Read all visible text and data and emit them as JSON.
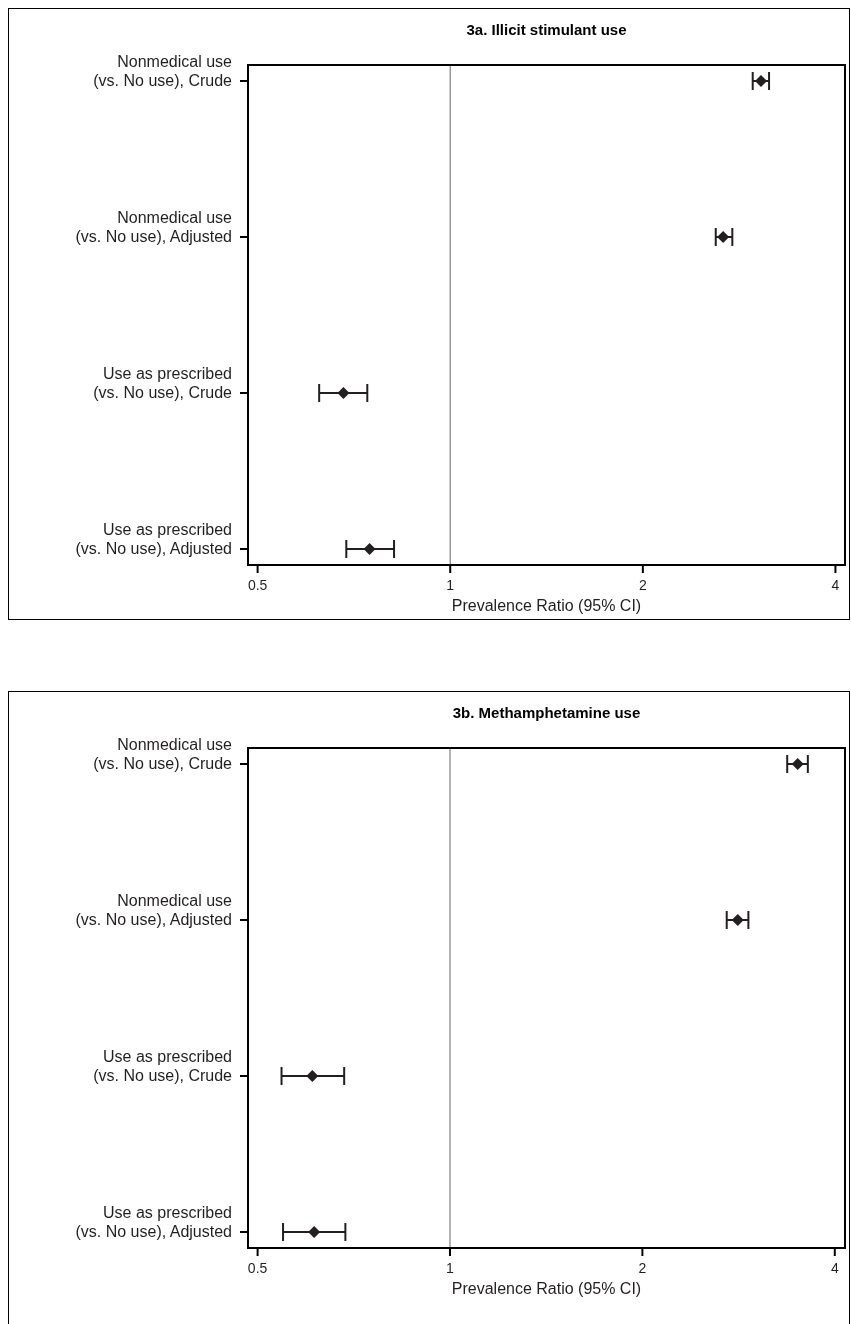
{
  "chart_data": [
    {
      "type": "scatter",
      "title": "3a. Illicit stimulant use",
      "xlabel": "Prevalence Ratio (95% CI)",
      "orientation": "horizontal",
      "log": "x",
      "marker": "diamond",
      "grid": false,
      "categories": [
        "Nonmedical use\n(vs. No use), Crude",
        "Nonmedical use\n(vs. No use), Adjusted",
        "Use as prescribed\n(vs. No use), Crude",
        "Use as prescribed\n(vs. No use), Adjusted"
      ],
      "series": [
        {
          "color": "#231f20",
          "values": [
            3.06,
            2.67,
            0.681,
            0.748
          ],
          "errors": [
            [
              2.97,
              3.15
            ],
            [
              2.6,
              2.76
            ],
            [
              0.624,
              0.742
            ],
            [
              0.688,
              0.817
            ]
          ]
        }
      ],
      "xlim": [
        0.483,
        4.14
      ],
      "xticks": [
        0.5,
        1,
        2,
        4
      ],
      "ref_lines": [
        {
          "axis": "x",
          "value": 1,
          "color": "#808080"
        }
      ]
    },
    {
      "type": "scatter",
      "title": "3b. Methamphetamine use",
      "xlabel": "Prevalence Ratio (95% CI)",
      "orientation": "horizontal",
      "log": "x",
      "marker": "diamond",
      "grid": false,
      "categories": [
        "Nonmedical use\n(vs. No use), Crude",
        "Nonmedical use\n(vs. No use), Adjusted",
        "Use as prescribed\n(vs. No use), Crude",
        "Use as prescribed\n(vs. No use), Adjusted"
      ],
      "series": [
        {
          "color": "#231f20",
          "values": [
            3.5,
            2.82,
            0.609,
            0.613
          ],
          "errors": [
            [
              3.37,
              3.63
            ],
            [
              2.71,
              2.93
            ],
            [
              0.545,
              0.683
            ],
            [
              0.548,
              0.686
            ]
          ]
        }
      ],
      "xlim": [
        0.483,
        4.15
      ],
      "xticks": [
        0.5,
        1,
        2,
        4
      ],
      "ref_lines": [
        {
          "axis": "x",
          "value": 1,
          "color": "#808080"
        }
      ]
    }
  ]
}
